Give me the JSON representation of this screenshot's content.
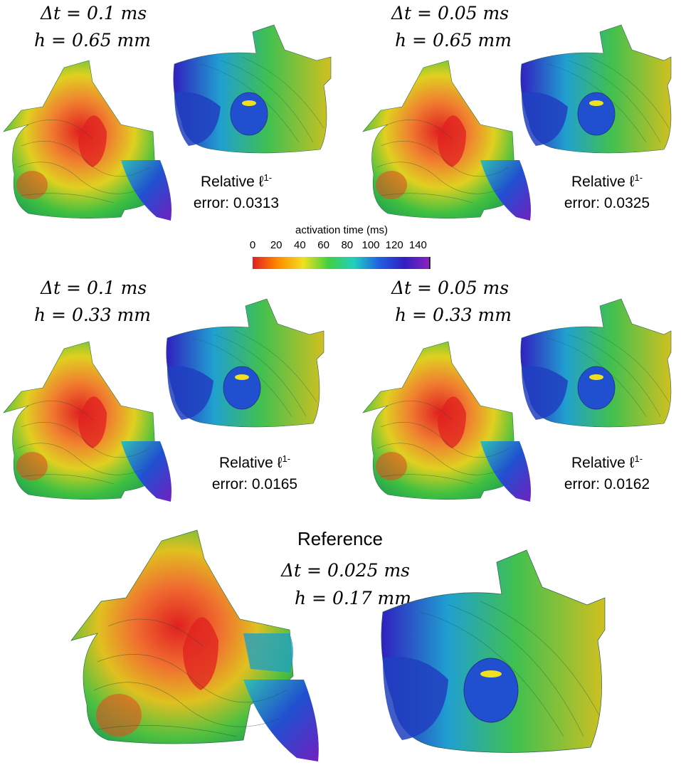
{
  "panels": [
    {
      "dt": "Δt = 0.1 ms",
      "h": "h = 0.65 mm",
      "error_label": "Relative ℓ",
      "error_exp": "1-",
      "error_value": "error: 0.0313"
    },
    {
      "dt": "Δt = 0.05 ms",
      "h": "h = 0.65 mm",
      "error_label": "Relative ℓ",
      "error_exp": "1-",
      "error_value": "error: 0.0325"
    },
    {
      "dt": "Δt = 0.1 ms",
      "h": "h = 0.33 mm",
      "error_label": "Relative ℓ",
      "error_exp": "1-",
      "error_value": "error: 0.0165"
    },
    {
      "dt": "Δt = 0.05 ms",
      "h": "h = 0.33 mm",
      "error_label": "Relative ℓ",
      "error_exp": "1-",
      "error_value": "error: 0.0162"
    }
  ],
  "reference": {
    "title": "Reference",
    "dt": "Δt = 0.025 ms",
    "h": "h = 0.17 mm"
  },
  "colorbar": {
    "title": "activation time (ms)",
    "ticks": [
      "0",
      "20",
      "40",
      "60",
      "80",
      "100",
      "120",
      "140"
    ],
    "range": [
      0,
      150
    ],
    "colors": [
      "#e02020",
      "#ff8c00",
      "#f0e020",
      "#40d040",
      "#20d0c0",
      "#2060e0",
      "#3020c0",
      "#9020c0"
    ]
  }
}
